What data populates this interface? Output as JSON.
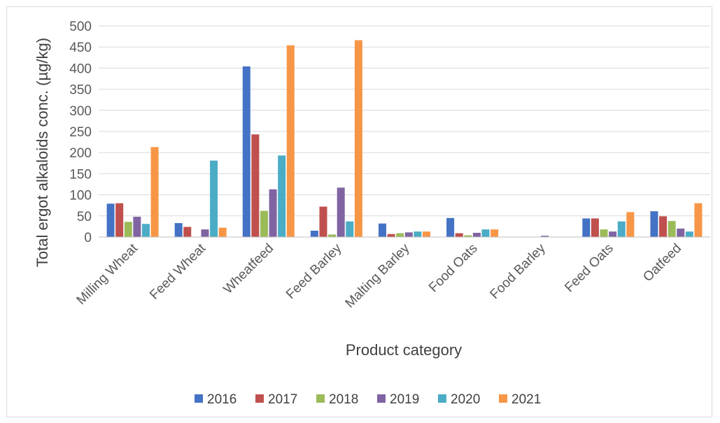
{
  "chart_data": {
    "type": "bar",
    "title": "",
    "xlabel": "Product category",
    "ylabel": "Total ergot alkaloids conc.  (µg/kg)",
    "ylim": [
      0,
      500
    ],
    "yticks": [
      0,
      50,
      100,
      150,
      200,
      250,
      300,
      350,
      400,
      450,
      500
    ],
    "grid": true,
    "legend_position": "bottom",
    "categories": [
      "Milling Wheat",
      "Feed Wheat",
      "Wheatfeed",
      "Feed Barley",
      "Malting Barley",
      "Food Oats",
      "Food Barley",
      "Feed Oats",
      "Oatfeed"
    ],
    "series": [
      {
        "name": "2016",
        "color": "#4472c4",
        "values": [
          79,
          33,
          404,
          15,
          32,
          45,
          0,
          44,
          61
        ]
      },
      {
        "name": "2017",
        "color": "#c0504d",
        "values": [
          80,
          24,
          243,
          72,
          7,
          9,
          0,
          44,
          49
        ]
      },
      {
        "name": "2018",
        "color": "#9bbb59",
        "values": [
          36,
          0,
          62,
          6,
          9,
          4,
          0,
          18,
          38
        ]
      },
      {
        "name": "2019",
        "color": "#8064a2",
        "values": [
          48,
          18,
          113,
          117,
          11,
          10,
          3,
          13,
          20
        ]
      },
      {
        "name": "2020",
        "color": "#4bacc6",
        "values": [
          31,
          181,
          193,
          37,
          13,
          18,
          0,
          37,
          13
        ]
      },
      {
        "name": "2021",
        "color": "#f79646",
        "values": [
          213,
          22,
          454,
          466,
          13,
          18,
          0,
          59,
          80
        ]
      }
    ]
  }
}
